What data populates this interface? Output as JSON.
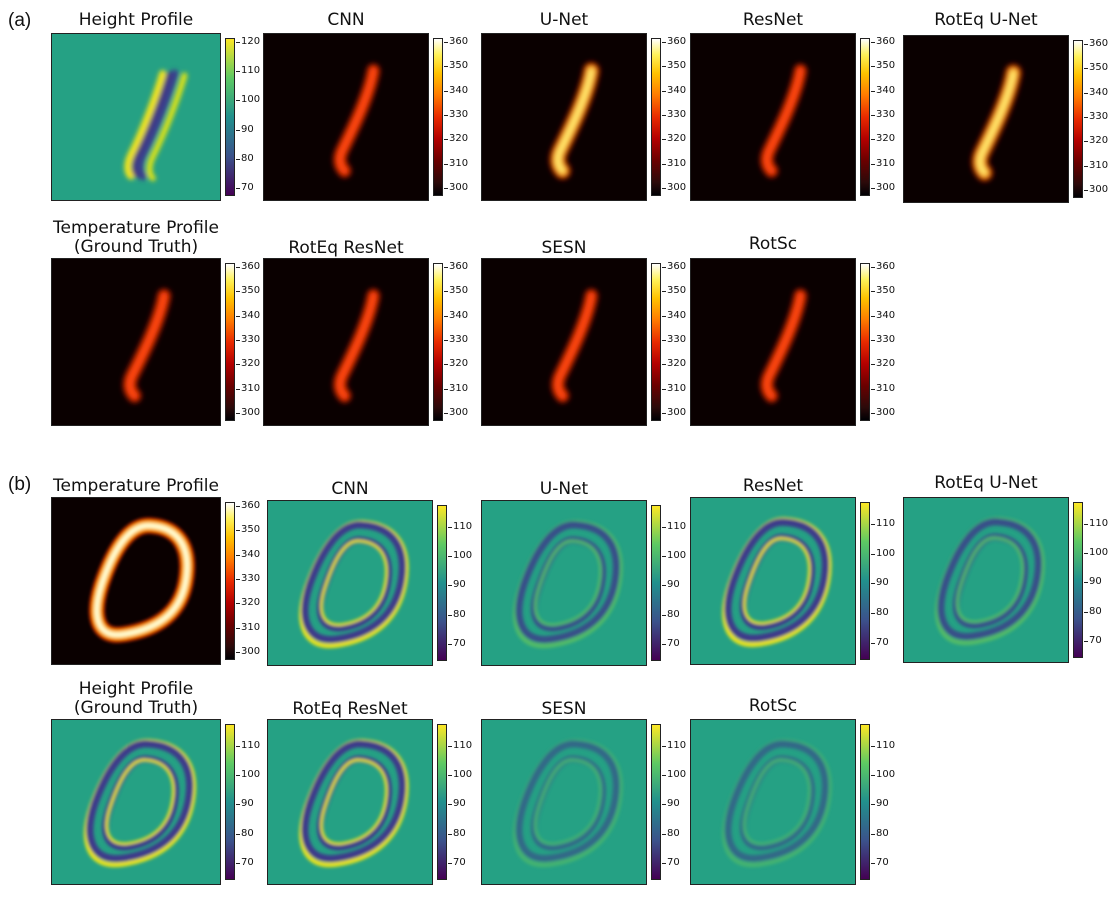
{
  "figure": {
    "section_a": {
      "label": "(a)",
      "row1": [
        {
          "id": "a-height-profile",
          "title": [
            "Height Profile"
          ],
          "map": "viridis-stroke",
          "cbar": "viridis",
          "ticks": [
            "120",
            "110",
            "100",
            "90",
            "80",
            "70"
          ]
        },
        {
          "id": "a-cnn",
          "title": [
            "CNN"
          ],
          "map": "hot-stroke",
          "cbar": "hot",
          "ticks": [
            "360",
            "350",
            "340",
            "330",
            "320",
            "310",
            "300"
          ]
        },
        {
          "id": "a-unet",
          "title": [
            "U-Net"
          ],
          "map": "hot-stroke-strong",
          "cbar": "hot",
          "ticks": [
            "360",
            "350",
            "340",
            "330",
            "320",
            "310",
            "300"
          ]
        },
        {
          "id": "a-resnet",
          "title": [
            "ResNet"
          ],
          "map": "hot-stroke",
          "cbar": "hot",
          "ticks": [
            "360",
            "350",
            "340",
            "330",
            "320",
            "310",
            "300"
          ]
        },
        {
          "id": "a-roteq-unet",
          "title": [
            "RotEq U-Net"
          ],
          "map": "hot-stroke-strong",
          "cbar": "hot",
          "ticks": [
            "360",
            "350",
            "340",
            "330",
            "320",
            "310",
            "300"
          ]
        }
      ],
      "row2": [
        {
          "id": "a-temperature-gt",
          "title": [
            "Temperature Profile",
            "(Ground Truth)"
          ],
          "map": "hot-stroke",
          "cbar": "hot",
          "ticks": [
            "360",
            "350",
            "340",
            "330",
            "320",
            "310",
            "300"
          ]
        },
        {
          "id": "a-roteq-resnet",
          "title": [
            "RotEq ResNet"
          ],
          "map": "hot-stroke",
          "cbar": "hot",
          "ticks": [
            "360",
            "350",
            "340",
            "330",
            "320",
            "310",
            "300"
          ]
        },
        {
          "id": "a-sesn",
          "title": [
            "SESN"
          ],
          "map": "hot-stroke",
          "cbar": "hot",
          "ticks": [
            "360",
            "350",
            "340",
            "330",
            "320",
            "310",
            "300"
          ]
        },
        {
          "id": "a-rotsc",
          "title": [
            "RotSc"
          ],
          "map": "hot-stroke",
          "cbar": "hot",
          "ticks": [
            "360",
            "350",
            "340",
            "330",
            "320",
            "310",
            "300"
          ]
        }
      ]
    },
    "section_b": {
      "label": "(b)",
      "row1": [
        {
          "id": "b-temperature",
          "title": [
            "Temperature Profile"
          ],
          "map": "hot-ring",
          "cbar": "hot",
          "ticks": [
            "360",
            "350",
            "340",
            "330",
            "320",
            "310",
            "300"
          ]
        },
        {
          "id": "b-cnn",
          "title": [
            "CNN"
          ],
          "map": "viridis-ring-strong",
          "cbar": "viridis",
          "ticks": [
            "110",
            "100",
            "90",
            "80",
            "70"
          ]
        },
        {
          "id": "b-unet",
          "title": [
            "U-Net"
          ],
          "map": "viridis-ring-soft",
          "cbar": "viridis",
          "ticks": [
            "110",
            "100",
            "90",
            "80",
            "70"
          ]
        },
        {
          "id": "b-resnet",
          "title": [
            "ResNet"
          ],
          "map": "viridis-ring-strong",
          "cbar": "viridis",
          "ticks": [
            "110",
            "100",
            "90",
            "80",
            "70"
          ]
        },
        {
          "id": "b-roteq-unet",
          "title": [
            "RotEq U-Net"
          ],
          "map": "viridis-ring-soft",
          "cbar": "viridis",
          "ticks": [
            "110",
            "100",
            "90",
            "80",
            "70"
          ]
        }
      ],
      "row2": [
        {
          "id": "b-height-gt",
          "title": [
            "Height Profile",
            "(Ground Truth)"
          ],
          "map": "viridis-ring-strong",
          "cbar": "viridis",
          "ticks": [
            "110",
            "100",
            "90",
            "80",
            "70"
          ]
        },
        {
          "id": "b-roteq-resnet",
          "title": [
            "RotEq ResNet"
          ],
          "map": "viridis-ring-strong",
          "cbar": "viridis",
          "ticks": [
            "110",
            "100",
            "90",
            "80",
            "70"
          ]
        },
        {
          "id": "b-sesn",
          "title": [
            "SESN"
          ],
          "map": "viridis-ring-faint",
          "cbar": "viridis",
          "ticks": [
            "110",
            "100",
            "90",
            "80",
            "70"
          ]
        },
        {
          "id": "b-rotsc",
          "title": [
            "RotSc"
          ],
          "map": "viridis-ring-faint",
          "cbar": "viridis",
          "ticks": [
            "110",
            "100",
            "90",
            "80",
            "70"
          ]
        }
      ]
    }
  }
}
